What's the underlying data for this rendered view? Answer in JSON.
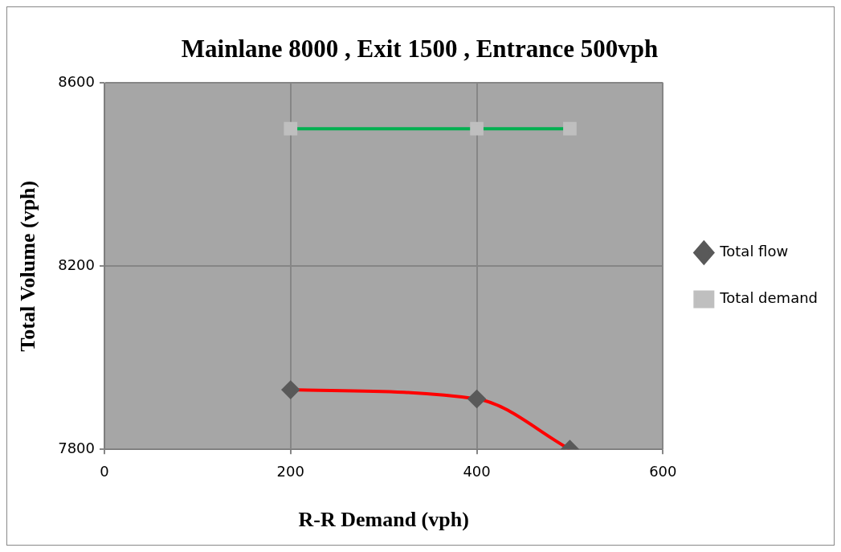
{
  "chart_data": {
    "type": "line",
    "title": "Mainlane 8000 , Exit 1500 , Entrance 500vph",
    "xlabel": "R-R Demand (vph)",
    "ylabel": "Total Volume (vph)",
    "x": [
      200,
      400,
      500
    ],
    "series": [
      {
        "name": "Total flow",
        "color": "#ff0000",
        "marker": "diamond",
        "values": [
          7930,
          7910,
          7800
        ]
      },
      {
        "name": "Total demand",
        "color": "#00b050",
        "marker": "square",
        "values": [
          8500,
          8500,
          8500
        ]
      }
    ],
    "xlim": [
      0,
      600
    ],
    "xticks": [
      0,
      200,
      400,
      600
    ],
    "ylim": [
      7800,
      8600
    ],
    "yticks": [
      7800,
      8200,
      8600
    ],
    "grid": true,
    "legend": "right"
  }
}
